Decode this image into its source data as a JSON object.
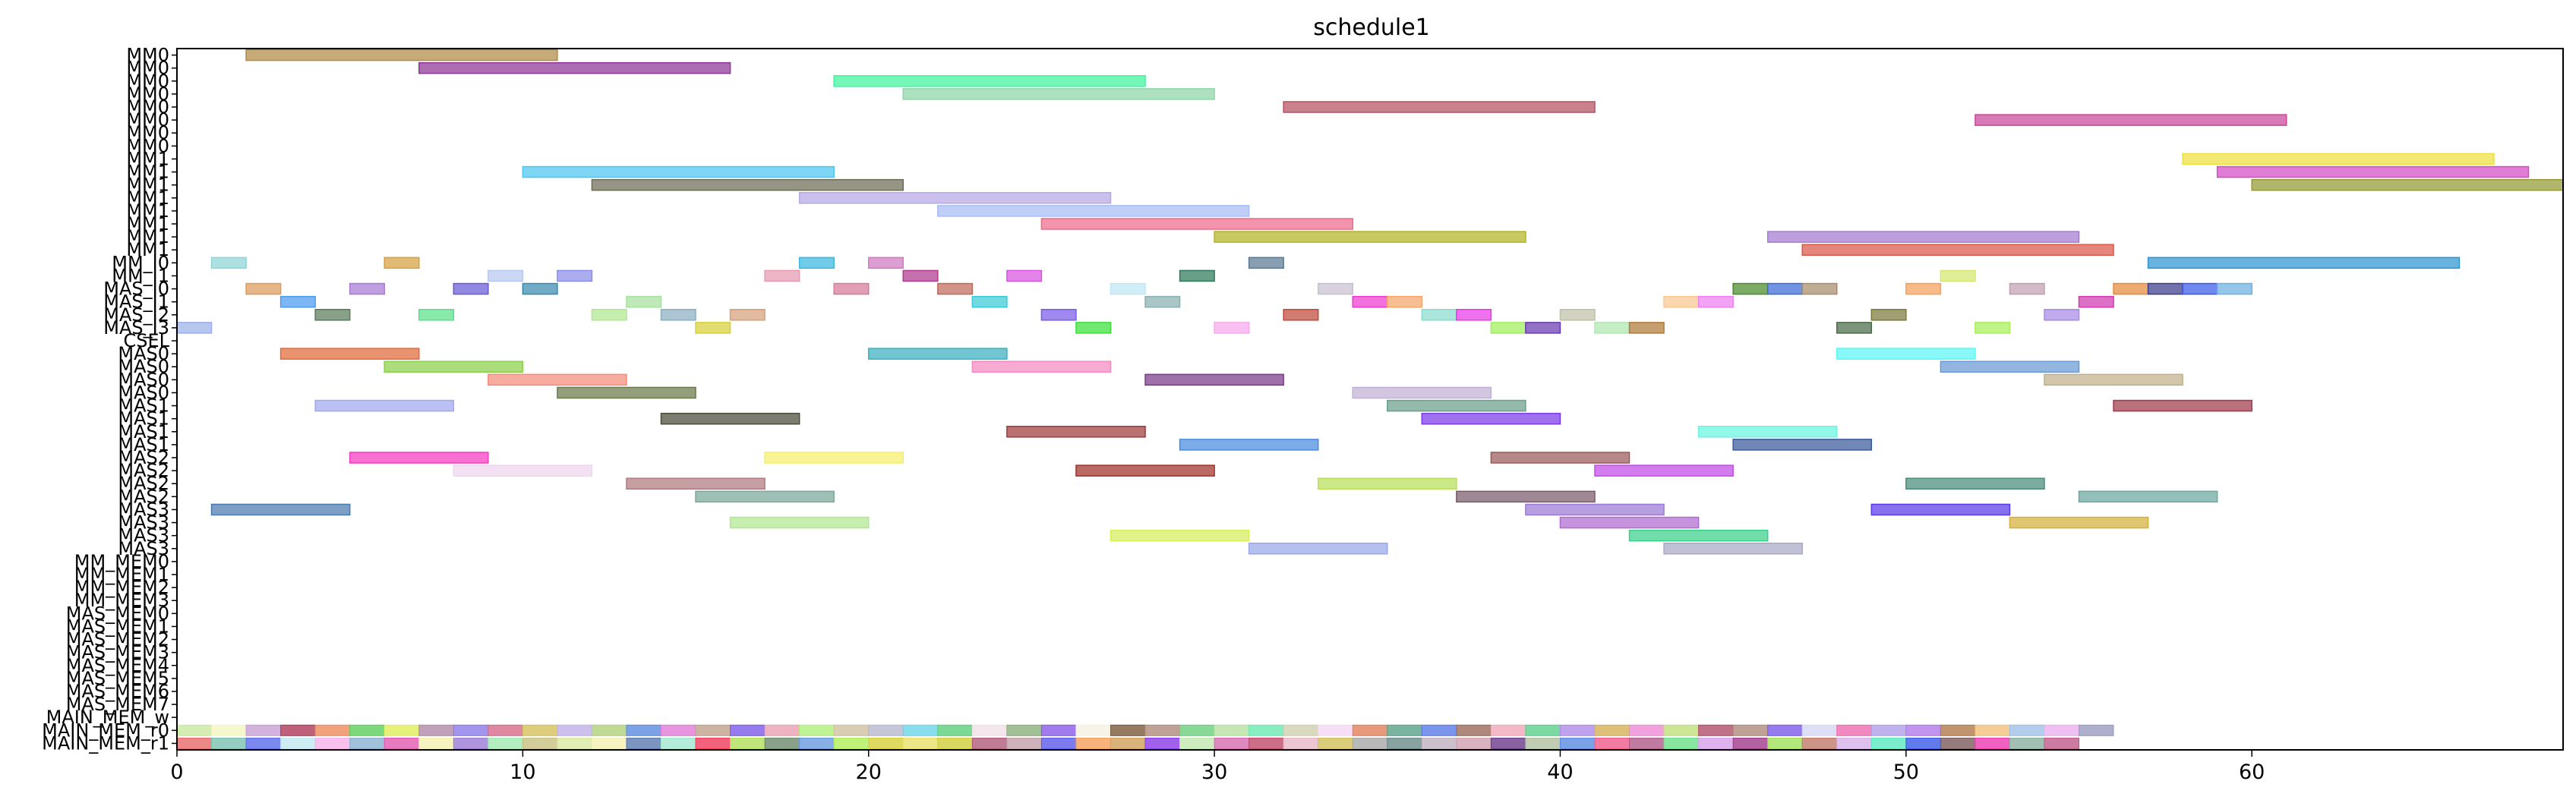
{
  "chart_data": {
    "type": "gantt",
    "title": "schedule1",
    "xlabel": "",
    "ylabel": "",
    "xlim": [
      0,
      69
    ],
    "x_ticks": [
      0,
      10,
      20,
      30,
      40,
      50,
      60
    ],
    "grid": false,
    "rows": [
      "MM0",
      "MM0",
      "MM0",
      "MM0",
      "MM0",
      "MM0",
      "MM0",
      "MM0",
      "MM1",
      "MM1",
      "MM1",
      "MM1",
      "MM1",
      "MM1",
      "MM1",
      "MM1",
      "MM_I0",
      "MM_I1",
      "MAS_I0",
      "MAS_I1",
      "MAS_I2",
      "MAS_I3",
      "CSEL",
      "MAS0",
      "MAS0",
      "MAS0",
      "MAS0",
      "MAS1",
      "MAS1",
      "MAS1",
      "MAS1",
      "MAS2",
      "MAS2",
      "MAS2",
      "MAS2",
      "MAS3",
      "MAS3",
      "MAS3",
      "MAS3",
      "MM_MEM0",
      "MM_MEM1",
      "MM_MEM2",
      "MM_MEM3",
      "MAS_MEM0",
      "MAS_MEM1",
      "MAS_MEM2",
      "MAS_MEM3",
      "MAS_MEM4",
      "MAS_MEM5",
      "MAS_MEM6",
      "MAS_MEM7",
      "MAIN_MEM_w",
      "MAIN_MEM_r0",
      "MAIN_MEM_r1"
    ],
    "bars": [
      {
        "row": 0,
        "start": 2,
        "end": 11,
        "color": "#b08a45"
      },
      {
        "row": 1,
        "start": 7,
        "end": 16,
        "color": "#8e3596"
      },
      {
        "row": 2,
        "start": 19,
        "end": 28,
        "color": "#3ef59c"
      },
      {
        "row": 3,
        "start": 21,
        "end": 30,
        "color": "#8fd6a8"
      },
      {
        "row": 4,
        "start": 32,
        "end": 41,
        "color": "#b4515e"
      },
      {
        "row": 5,
        "start": 52,
        "end": 61,
        "color": "#c8479a"
      },
      {
        "row": 8,
        "start": 58,
        "end": 67,
        "color": "#ece13f"
      },
      {
        "row": 9,
        "start": 10,
        "end": 19,
        "color": "#4bc6f0"
      },
      {
        "row": 9,
        "start": 59,
        "end": 68,
        "color": "#d44bc5"
      },
      {
        "row": 10,
        "start": 12,
        "end": 21,
        "color": "#6e6b55"
      },
      {
        "row": 10,
        "start": 60,
        "end": 69,
        "color": "#949a34"
      },
      {
        "row": 11,
        "start": 18,
        "end": 27,
        "color": "#b7a8e6"
      },
      {
        "row": 12,
        "start": 22,
        "end": 31,
        "color": "#a6bdf5"
      },
      {
        "row": 13,
        "start": 25,
        "end": 34,
        "color": "#ec6b8c"
      },
      {
        "row": 14,
        "start": 30,
        "end": 39,
        "color": "#b4b425"
      },
      {
        "row": 14,
        "start": 46,
        "end": 55,
        "color": "#a57ad0"
      },
      {
        "row": 15,
        "start": 47,
        "end": 56,
        "color": "#d9584a"
      },
      {
        "row": 16,
        "start": 57,
        "end": 66,
        "color": "#2f95d2"
      },
      {
        "row": 16,
        "start": 1,
        "end": 2,
        "color": "#8ed6d6"
      },
      {
        "row": 16,
        "start": 6,
        "end": 7,
        "color": "#d6a03e"
      },
      {
        "row": 16,
        "start": 18,
        "end": 19,
        "color": "#3ab8e0"
      },
      {
        "row": 16,
        "start": 20,
        "end": 21,
        "color": "#d07ac0"
      },
      {
        "row": 16,
        "start": 31,
        "end": 32,
        "color": "#5a7a94"
      },
      {
        "row": 17,
        "start": 9,
        "end": 10,
        "color": "#b8c8f0"
      },
      {
        "row": 17,
        "start": 11,
        "end": 12,
        "color": "#8a8ee8"
      },
      {
        "row": 17,
        "start": 17,
        "end": 18,
        "color": "#e49ab0"
      },
      {
        "row": 17,
        "start": 21,
        "end": 22,
        "color": "#b03a8e"
      },
      {
        "row": 17,
        "start": 24,
        "end": 25,
        "color": "#d854e0"
      },
      {
        "row": 17,
        "start": 29,
        "end": 30,
        "color": "#2e7a5a"
      },
      {
        "row": 17,
        "start": 51,
        "end": 52,
        "color": "#d6e870"
      },
      {
        "row": 18,
        "start": 45,
        "end": 46,
        "color": "#4a8a2a"
      },
      {
        "row": 18,
        "start": 46,
        "end": 47,
        "color": "#3a6ad6"
      },
      {
        "row": 18,
        "start": 56,
        "end": 57,
        "color": "#e68a3a"
      },
      {
        "row": 18,
        "start": 57,
        "end": 58,
        "color": "#3a3a8a"
      },
      {
        "row": 18,
        "start": 58,
        "end": 59,
        "color": "#3a5ae8"
      },
      {
        "row": 18,
        "start": 59,
        "end": 60,
        "color": "#6ab0e0"
      },
      {
        "row": 18,
        "start": 2,
        "end": 3,
        "color": "#de9a5a"
      },
      {
        "row": 18,
        "start": 5,
        "end": 6,
        "color": "#a67ad6"
      },
      {
        "row": 18,
        "start": 8,
        "end": 9,
        "color": "#6a5ad6"
      },
      {
        "row": 18,
        "start": 10,
        "end": 11,
        "color": "#3a8ab0"
      },
      {
        "row": 18,
        "start": 19,
        "end": 20,
        "color": "#d67a9a"
      },
      {
        "row": 18,
        "start": 22,
        "end": 23,
        "color": "#c06a5a"
      },
      {
        "row": 18,
        "start": 27,
        "end": 28,
        "color": "#bfe8f5"
      },
      {
        "row": 18,
        "start": 33,
        "end": 34,
        "color": "#c8c0d0"
      },
      {
        "row": 18,
        "start": 47,
        "end": 48,
        "color": "#a88a6a"
      },
      {
        "row": 18,
        "start": 50,
        "end": 51,
        "color": "#f5a05a"
      },
      {
        "row": 18,
        "start": 53,
        "end": 54,
        "color": "#c0a0b0"
      },
      {
        "row": 19,
        "start": 3,
        "end": 4,
        "color": "#4a9aee"
      },
      {
        "row": 19,
        "start": 13,
        "end": 14,
        "color": "#a8e0a0"
      },
      {
        "row": 19,
        "start": 23,
        "end": 24,
        "color": "#3acad6"
      },
      {
        "row": 19,
        "start": 28,
        "end": 29,
        "color": "#8ab0b0"
      },
      {
        "row": 19,
        "start": 34,
        "end": 35,
        "color": "#ee3ace"
      },
      {
        "row": 19,
        "start": 35,
        "end": 36,
        "color": "#f5a56a"
      },
      {
        "row": 19,
        "start": 43,
        "end": 44,
        "color": "#fac890"
      },
      {
        "row": 19,
        "start": 44,
        "end": 45,
        "color": "#ee80ee"
      },
      {
        "row": 19,
        "start": 55,
        "end": 56,
        "color": "#d03ab0"
      },
      {
        "row": 20,
        "start": 4,
        "end": 5,
        "color": "#5a7a5a"
      },
      {
        "row": 20,
        "start": 7,
        "end": 8,
        "color": "#5ae08a"
      },
      {
        "row": 20,
        "start": 12,
        "end": 13,
        "color": "#b0e890"
      },
      {
        "row": 20,
        "start": 14,
        "end": 15,
        "color": "#8ab0c0"
      },
      {
        "row": 20,
        "start": 16,
        "end": 17,
        "color": "#d6a07a"
      },
      {
        "row": 20,
        "start": 25,
        "end": 26,
        "color": "#7a5ae8"
      },
      {
        "row": 20,
        "start": 32,
        "end": 33,
        "color": "#c04a3a"
      },
      {
        "row": 20,
        "start": 36,
        "end": 37,
        "color": "#8adcd0"
      },
      {
        "row": 20,
        "start": 37,
        "end": 38,
        "color": "#e83ae8"
      },
      {
        "row": 20,
        "start": 40,
        "end": 41,
        "color": "#c0c0a8"
      },
      {
        "row": 20,
        "start": 49,
        "end": 50,
        "color": "#7a7a3a"
      },
      {
        "row": 20,
        "start": 54,
        "end": 55,
        "color": "#a88ae8"
      },
      {
        "row": 21,
        "start": 0,
        "end": 1,
        "color": "#9ab0e8"
      },
      {
        "row": 21,
        "start": 15,
        "end": 16,
        "color": "#d6d03a"
      },
      {
        "row": 21,
        "start": 26,
        "end": 27,
        "color": "#3ae03a"
      },
      {
        "row": 21,
        "start": 30,
        "end": 31,
        "color": "#f5a8ee"
      },
      {
        "row": 21,
        "start": 38,
        "end": 39,
        "color": "#a0ee5a"
      },
      {
        "row": 21,
        "start": 39,
        "end": 40,
        "color": "#6a3ab0"
      },
      {
        "row": 21,
        "start": 41,
        "end": 42,
        "color": "#b0e8b0"
      },
      {
        "row": 21,
        "start": 42,
        "end": 43,
        "color": "#b07a3a"
      },
      {
        "row": 21,
        "start": 48,
        "end": 49,
        "color": "#4a6a4a"
      },
      {
        "row": 21,
        "start": 52,
        "end": 53,
        "color": "#a8ee5a"
      },
      {
        "row": 23,
        "start": 3,
        "end": 7,
        "color": "#e06a3a"
      },
      {
        "row": 23,
        "start": 20,
        "end": 24,
        "color": "#3ab0c0"
      },
      {
        "row": 23,
        "start": 48,
        "end": 52,
        "color": "#5af5f5"
      },
      {
        "row": 24,
        "start": 6,
        "end": 10,
        "color": "#8ad04a"
      },
      {
        "row": 24,
        "start": 23,
        "end": 27,
        "color": "#f58ac0"
      },
      {
        "row": 24,
        "start": 51,
        "end": 55,
        "color": "#6a9ad6"
      },
      {
        "row": 25,
        "start": 9,
        "end": 13,
        "color": "#f58a7a"
      },
      {
        "row": 25,
        "start": 28,
        "end": 32,
        "color": "#7a3a8a"
      },
      {
        "row": 25,
        "start": 54,
        "end": 58,
        "color": "#c0b08a"
      },
      {
        "row": 26,
        "start": 11,
        "end": 15,
        "color": "#6a7a4a"
      },
      {
        "row": 26,
        "start": 34,
        "end": 38,
        "color": "#c0b0d6"
      },
      {
        "row": 27,
        "start": 4,
        "end": 8,
        "color": "#a0a8ee"
      },
      {
        "row": 27,
        "start": 35,
        "end": 39,
        "color": "#6aa08a"
      },
      {
        "row": 27,
        "start": 56,
        "end": 60,
        "color": "#a03a4a"
      },
      {
        "row": 28,
        "start": 14,
        "end": 18,
        "color": "#4a4a3a"
      },
      {
        "row": 28,
        "start": 36,
        "end": 40,
        "color": "#7a3ae8"
      },
      {
        "row": 29,
        "start": 24,
        "end": 28,
        "color": "#a03a3a"
      },
      {
        "row": 29,
        "start": 44,
        "end": 48,
        "color": "#6af5e0"
      },
      {
        "row": 30,
        "start": 29,
        "end": 33,
        "color": "#4a8ae0"
      },
      {
        "row": 30,
        "start": 45,
        "end": 49,
        "color": "#3a5a9a"
      },
      {
        "row": 31,
        "start": 5,
        "end": 9,
        "color": "#f53ac0"
      },
      {
        "row": 31,
        "start": 17,
        "end": 21,
        "color": "#f5ee6a"
      },
      {
        "row": 31,
        "start": 38,
        "end": 42,
        "color": "#9a5a5a"
      },
      {
        "row": 32,
        "start": 8,
        "end": 12,
        "color": "#eed6ee"
      },
      {
        "row": 32,
        "start": 26,
        "end": 30,
        "color": "#a0302a"
      },
      {
        "row": 32,
        "start": 41,
        "end": 45,
        "color": "#c04ae8"
      },
      {
        "row": 33,
        "start": 13,
        "end": 17,
        "color": "#b07a80"
      },
      {
        "row": 33,
        "start": 33,
        "end": 37,
        "color": "#b8e05a"
      },
      {
        "row": 33,
        "start": 50,
        "end": 54,
        "color": "#4a8a7a"
      },
      {
        "row": 34,
        "start": 15,
        "end": 19,
        "color": "#7aa89a"
      },
      {
        "row": 34,
        "start": 37,
        "end": 41,
        "color": "#7a5a6a"
      },
      {
        "row": 34,
        "start": 55,
        "end": 59,
        "color": "#6aa8a0"
      },
      {
        "row": 35,
        "start": 1,
        "end": 5,
        "color": "#4a7ab0"
      },
      {
        "row": 35,
        "start": 39,
        "end": 43,
        "color": "#9a7ad6"
      },
      {
        "row": 35,
        "start": 49,
        "end": 53,
        "color": "#5a3ae8"
      },
      {
        "row": 36,
        "start": 16,
        "end": 20,
        "color": "#b0e890"
      },
      {
        "row": 36,
        "start": 40,
        "end": 44,
        "color": "#b06ad0"
      },
      {
        "row": 36,
        "start": 53,
        "end": 57,
        "color": "#d6b03a"
      },
      {
        "row": 37,
        "start": 27,
        "end": 31,
        "color": "#d6ee5a"
      },
      {
        "row": 37,
        "start": 42,
        "end": 46,
        "color": "#3ad08a"
      },
      {
        "row": 38,
        "start": 31,
        "end": 35,
        "color": "#9aa8e8"
      },
      {
        "row": 38,
        "start": 43,
        "end": 47,
        "color": "#a8a8c8"
      }
    ],
    "mem_w_colors": [
      "#c8e8a0",
      "#f5f5c0",
      "#c8a0d6",
      "#b03a5a",
      "#ee8a5a",
      "#5ad05a",
      "#e0ee5a",
      "#b08aa8",
      "#8a7ae8",
      "#d66a8a",
      "#d6c05a",
      "#c0b0e8",
      "#b0d07a",
      "#5a8ae0",
      "#e07ad6",
      "#c0a08a",
      "#7a5ae8",
      "#e8a0b0",
      "#b0f07a",
      "#d0c0a0",
      "#b8b8d0",
      "#6ad6e8",
      "#5ad07a",
      "#f0e0e8",
      "#8ab07a",
      "#8a5ae8",
      "#f5f0e0",
      "#7a5a3a",
      "#b08a7a",
      "#6ad07a",
      "#b8e0a0",
      "#6ae8b0",
      "#d0d0b0",
      "#f5d6f5",
      "#e0805a",
      "#5aa08a",
      "#5a7ae8",
      "#9a6a5a",
      "#f0a8b8",
      "#5ad08a",
      "#b08ae8",
      "#d6b05a",
      "#ee8ad6",
      "#c0e07a",
      "#b0506a",
      "#b08a7a",
      "#7a5ae8",
      "#d6d6f5",
      "#ee6ab0",
      "#b0a0e8",
      "#b07ae8",
      "#b07a4a",
      "#f0c07a",
      "#a0c0e8",
      "#e8b0ee",
      "#9a9ac0"
    ],
    "mem_r_colors": [
      "#e86a6a",
      "#7ac0b0",
      "#5a6ae8",
      "#c0e8f0",
      "#f5b0e8",
      "#8ab0d0",
      "#e05ab0",
      "#f5f0b0",
      "#9a7ad6",
      "#a0e8b0",
      "#c8c080",
      "#d8e8a0",
      "#f5f0b0",
      "#5a7ab0",
      "#a0e8d0",
      "#f03a5a",
      "#b0e05a",
      "#6a8a6a",
      "#6a9ae0",
      "#b0ee5a",
      "#d6d03a",
      "#e8e06a",
      "#d0d03a",
      "#b05a7a",
      "#c0a0a8",
      "#5a5ae8",
      "#f5a05a",
      "#d0a05a",
      "#8a3ae8",
      "#c0e8b0",
      "#d66ab0",
      "#c04a6a",
      "#e8b8c8",
      "#d0c05a",
      "#a8a8a8",
      "#6a8a8a",
      "#c0b0c0",
      "#d0a0b0",
      "#6a3a8a",
      "#b0c0a0",
      "#5a8ae0",
      "#ee5a8a",
      "#b05a8a",
      "#6ae08a",
      "#d6a0e8",
      "#a03a8a",
      "#a0e05a",
      "#c07a6a",
      "#d6b0e8",
      "#5ae8c0",
      "#3a5ae8",
      "#7a5a5a",
      "#ee3ab0",
      "#8ab0a0",
      "#c05a8a"
    ]
  }
}
